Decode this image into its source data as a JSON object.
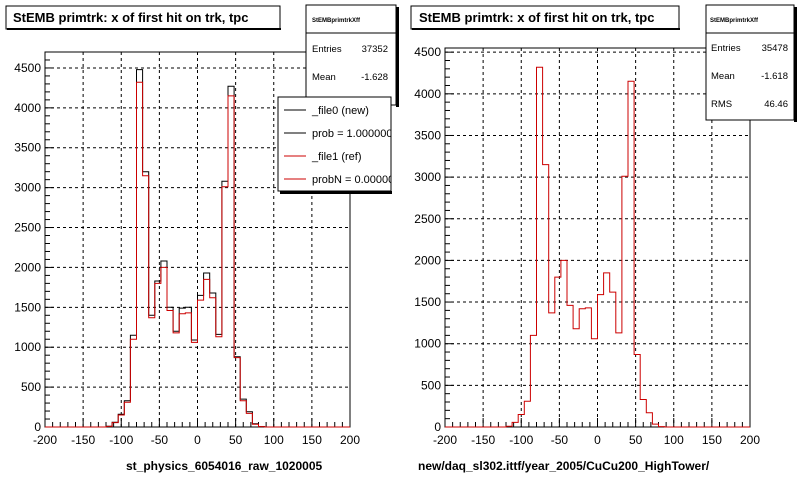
{
  "colors": {
    "new": "#000000",
    "ref": "#cc0000",
    "frame": "#000000",
    "grid": "#000000",
    "background": "#ffffff"
  },
  "chart_data": [
    {
      "type": "histogram",
      "title": "StEMB primtrk: x of first hit on trk, tpc",
      "xlabel": "st_physics_6054016_raw_1020005",
      "ylabel": "",
      "xlim": [
        -200,
        200
      ],
      "ylim": [
        0,
        4700
      ],
      "grid": true,
      "xticks": [
        -200,
        -150,
        -100,
        -50,
        0,
        50,
        100,
        150,
        200
      ],
      "yticks": [
        0,
        500,
        1000,
        1500,
        2000,
        2500,
        3000,
        3500,
        4000,
        4500
      ],
      "bin_width": 8,
      "bin_edges_start": -200,
      "series": [
        {
          "name": "_file0 (new)",
          "style": "new",
          "values": [
            0,
            0,
            0,
            0,
            0,
            0,
            0,
            0,
            0,
            0,
            10,
            60,
            160,
            330,
            1150,
            4480,
            3200,
            1400,
            1830,
            2080,
            1500,
            1200,
            1490,
            1500,
            1090,
            1650,
            1930,
            1680,
            1160,
            3080,
            4270,
            880,
            350,
            190,
            40,
            5,
            0,
            0,
            0,
            0,
            0,
            0,
            0,
            0,
            0,
            0,
            0,
            0,
            0,
            0
          ]
        },
        {
          "name": "_file1 (ref)",
          "style": "ref",
          "values": [
            0,
            0,
            0,
            0,
            0,
            0,
            0,
            0,
            0,
            0,
            8,
            55,
            150,
            310,
            1100,
            4320,
            3150,
            1370,
            1800,
            2000,
            1460,
            1180,
            1420,
            1430,
            1060,
            1590,
            1850,
            1620,
            1130,
            3010,
            4150,
            870,
            330,
            170,
            35,
            5,
            0,
            0,
            0,
            0,
            0,
            0,
            0,
            0,
            0,
            0,
            0,
            0,
            0,
            0
          ]
        }
      ],
      "stats": {
        "title": "StEMBprimtrkXff",
        "entries_label": "Entries",
        "entries": "37352",
        "mean_label": "Mean",
        "mean": "-1.628"
      },
      "legend": {
        "placement": "top-right",
        "entries": [
          {
            "label": "_file0 (new)",
            "style": "new"
          },
          {
            "label": "prob = 1.000000",
            "style": "new"
          },
          {
            "label": "_file1 (ref)",
            "style": "ref"
          },
          {
            "label": "probN = 0.000000",
            "style": "ref"
          }
        ]
      }
    },
    {
      "type": "histogram",
      "title": "StEMB primtrk: x of first hit on trk, tpc",
      "xlabel": "new/daq_sl302.ittf/year_2005/CuCu200_HighTower/",
      "ylabel": "",
      "xlim": [
        -200,
        200
      ],
      "ylim": [
        0,
        4550
      ],
      "grid": true,
      "xticks": [
        -200,
        -150,
        -100,
        -50,
        0,
        50,
        100,
        150,
        200
      ],
      "yticks": [
        0,
        500,
        1000,
        1500,
        2000,
        2500,
        3000,
        3500,
        4000,
        4500
      ],
      "bin_width": 8,
      "bin_edges_start": -200,
      "series": [
        {
          "name": "",
          "style": "ref",
          "values": [
            0,
            0,
            0,
            0,
            0,
            0,
            0,
            0,
            0,
            0,
            8,
            55,
            150,
            310,
            1100,
            4320,
            3150,
            1370,
            1800,
            2000,
            1460,
            1180,
            1420,
            1430,
            1060,
            1590,
            1850,
            1620,
            1130,
            3010,
            4150,
            870,
            330,
            170,
            35,
            5,
            0,
            0,
            0,
            0,
            0,
            0,
            0,
            0,
            0,
            0,
            0,
            0,
            0,
            0
          ]
        }
      ],
      "stats": {
        "title": "StEMBprimtrkXff",
        "entries_label": "Entries",
        "entries": "35478",
        "mean_label": "Mean",
        "mean": "-1.618",
        "rms_label": "RMS",
        "rms": "46.46"
      }
    }
  ]
}
